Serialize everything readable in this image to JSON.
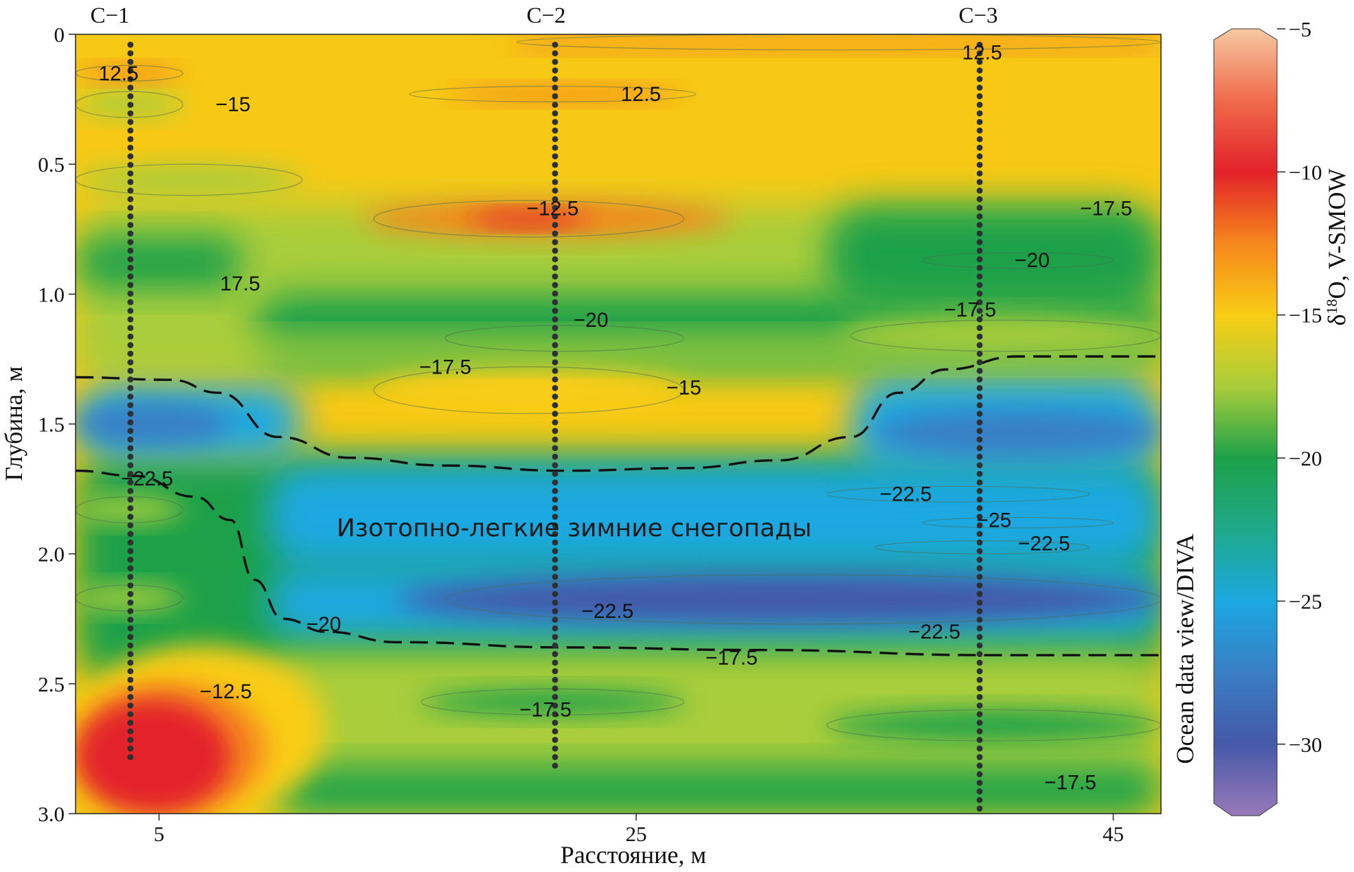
{
  "chart_data": {
    "type": "heatmap",
    "xlabel": "Расстояние, м",
    "ylabel": "Глубина, м",
    "xlim": [
      1.5,
      47
    ],
    "ylim": [
      0,
      3
    ],
    "x_ticks": [
      "5",
      "25",
      "45"
    ],
    "x_tick_values": [
      5,
      25,
      45
    ],
    "y_ticks": [
      "0",
      "0.5",
      "1.0",
      "1.5",
      "2.0",
      "2.5",
      "3.0"
    ],
    "y_tick_values": [
      0,
      0.5,
      1.0,
      1.5,
      2.0,
      2.5,
      3.0
    ],
    "stations": [
      {
        "name": "C−1",
        "x": 3.8,
        "depth_max": 2.8
      },
      {
        "name": "C−2",
        "x": 21.6,
        "depth_max": 2.83
      },
      {
        "name": "C−3",
        "x": 39.4,
        "depth_max": 3.0
      }
    ],
    "colorbar": {
      "title": "δ18O, V-SMOW",
      "title_prefix": "δ",
      "title_sup": "18",
      "title_suffix": "O, V-SMOW",
      "source_label": "Ocean data view/DIVA",
      "range": [
        -32.5,
        -5
      ],
      "ticks": [
        "-5",
        "-10",
        "-15",
        "-20",
        "-25",
        "-30"
      ],
      "tick_values": [
        -5,
        -10,
        -15,
        -20,
        -25,
        -30
      ],
      "colors": [
        {
          "value": -5,
          "color": "#f7c8a2"
        },
        {
          "value": -7.5,
          "color": "#ef6b4a"
        },
        {
          "value": -10,
          "color": "#e3222a"
        },
        {
          "value": -12.5,
          "color": "#f5871c"
        },
        {
          "value": -15,
          "color": "#f9cd14"
        },
        {
          "value": -17.5,
          "color": "#a9cd3a"
        },
        {
          "value": -20,
          "color": "#1da14a"
        },
        {
          "value": -22.5,
          "color": "#1ea98a"
        },
        {
          "value": -25,
          "color": "#1ba8e0"
        },
        {
          "value": -27.5,
          "color": "#3a7ec4"
        },
        {
          "value": -30,
          "color": "#4559a8"
        },
        {
          "value": -32.5,
          "color": "#9a79b9"
        }
      ]
    },
    "contour_labels": [
      {
        "text": "12.5",
        "x": 3.3,
        "depth": 0.15
      },
      {
        "text": "−15",
        "x": 8.1,
        "depth": 0.27
      },
      {
        "text": "12.5",
        "x": 25.2,
        "depth": 0.23
      },
      {
        "text": "12.5",
        "x": 39.5,
        "depth": 0.07
      },
      {
        "text": "−12.5",
        "x": 21.5,
        "depth": 0.67
      },
      {
        "text": "−17.5",
        "x": 44.7,
        "depth": 0.67
      },
      {
        "text": "−20",
        "x": 41.6,
        "depth": 0.87
      },
      {
        "text": "17.5",
        "x": 8.4,
        "depth": 0.96
      },
      {
        "text": "−20",
        "x": 23.1,
        "depth": 1.1
      },
      {
        "text": "−17.5",
        "x": 39.0,
        "depth": 1.06
      },
      {
        "text": "−17.5",
        "x": 17.0,
        "depth": 1.28
      },
      {
        "text": "−15",
        "x": 27.0,
        "depth": 1.36
      },
      {
        "text": "−22.5",
        "x": 4.5,
        "depth": 1.71
      },
      {
        "text": "−22.5",
        "x": 36.3,
        "depth": 1.77
      },
      {
        "text": "−25",
        "x": 40.0,
        "depth": 1.87
      },
      {
        "text": "−22.5",
        "x": 42.1,
        "depth": 1.96
      },
      {
        "text": "−20",
        "x": 11.9,
        "depth": 2.27
      },
      {
        "text": "−22.5",
        "x": 23.8,
        "depth": 2.22
      },
      {
        "text": "−22.5",
        "x": 37.5,
        "depth": 2.3
      },
      {
        "text": "−17.5",
        "x": 29.0,
        "depth": 2.4
      },
      {
        "text": "−12.5",
        "x": 7.8,
        "depth": 2.53
      },
      {
        "text": "−17.5",
        "x": 21.2,
        "depth": 2.6
      },
      {
        "text": "−17.5",
        "x": 43.2,
        "depth": 2.88
      }
    ],
    "annotation": "Изотопно-легкие зимние снегопады",
    "boundary_lines": [
      {
        "points": [
          [
            1.5,
            1.32
          ],
          [
            5.5,
            1.33
          ],
          [
            7.5,
            1.38
          ],
          [
            10,
            1.55
          ],
          [
            13,
            1.63
          ],
          [
            17,
            1.66
          ],
          [
            22,
            1.68
          ],
          [
            27,
            1.67
          ],
          [
            31,
            1.64
          ],
          [
            34,
            1.55
          ],
          [
            36,
            1.38
          ],
          [
            38,
            1.29
          ],
          [
            41,
            1.24
          ],
          [
            47,
            1.24
          ]
        ]
      },
      {
        "points": [
          [
            1.5,
            1.68
          ],
          [
            4,
            1.7
          ],
          [
            6.5,
            1.78
          ],
          [
            8,
            1.87
          ],
          [
            9,
            2.1
          ],
          [
            10.2,
            2.25
          ],
          [
            12,
            2.3
          ],
          [
            15,
            2.34
          ],
          [
            22,
            2.36
          ],
          [
            30,
            2.37
          ],
          [
            40,
            2.39
          ],
          [
            47,
            2.39
          ]
        ]
      }
    ]
  }
}
